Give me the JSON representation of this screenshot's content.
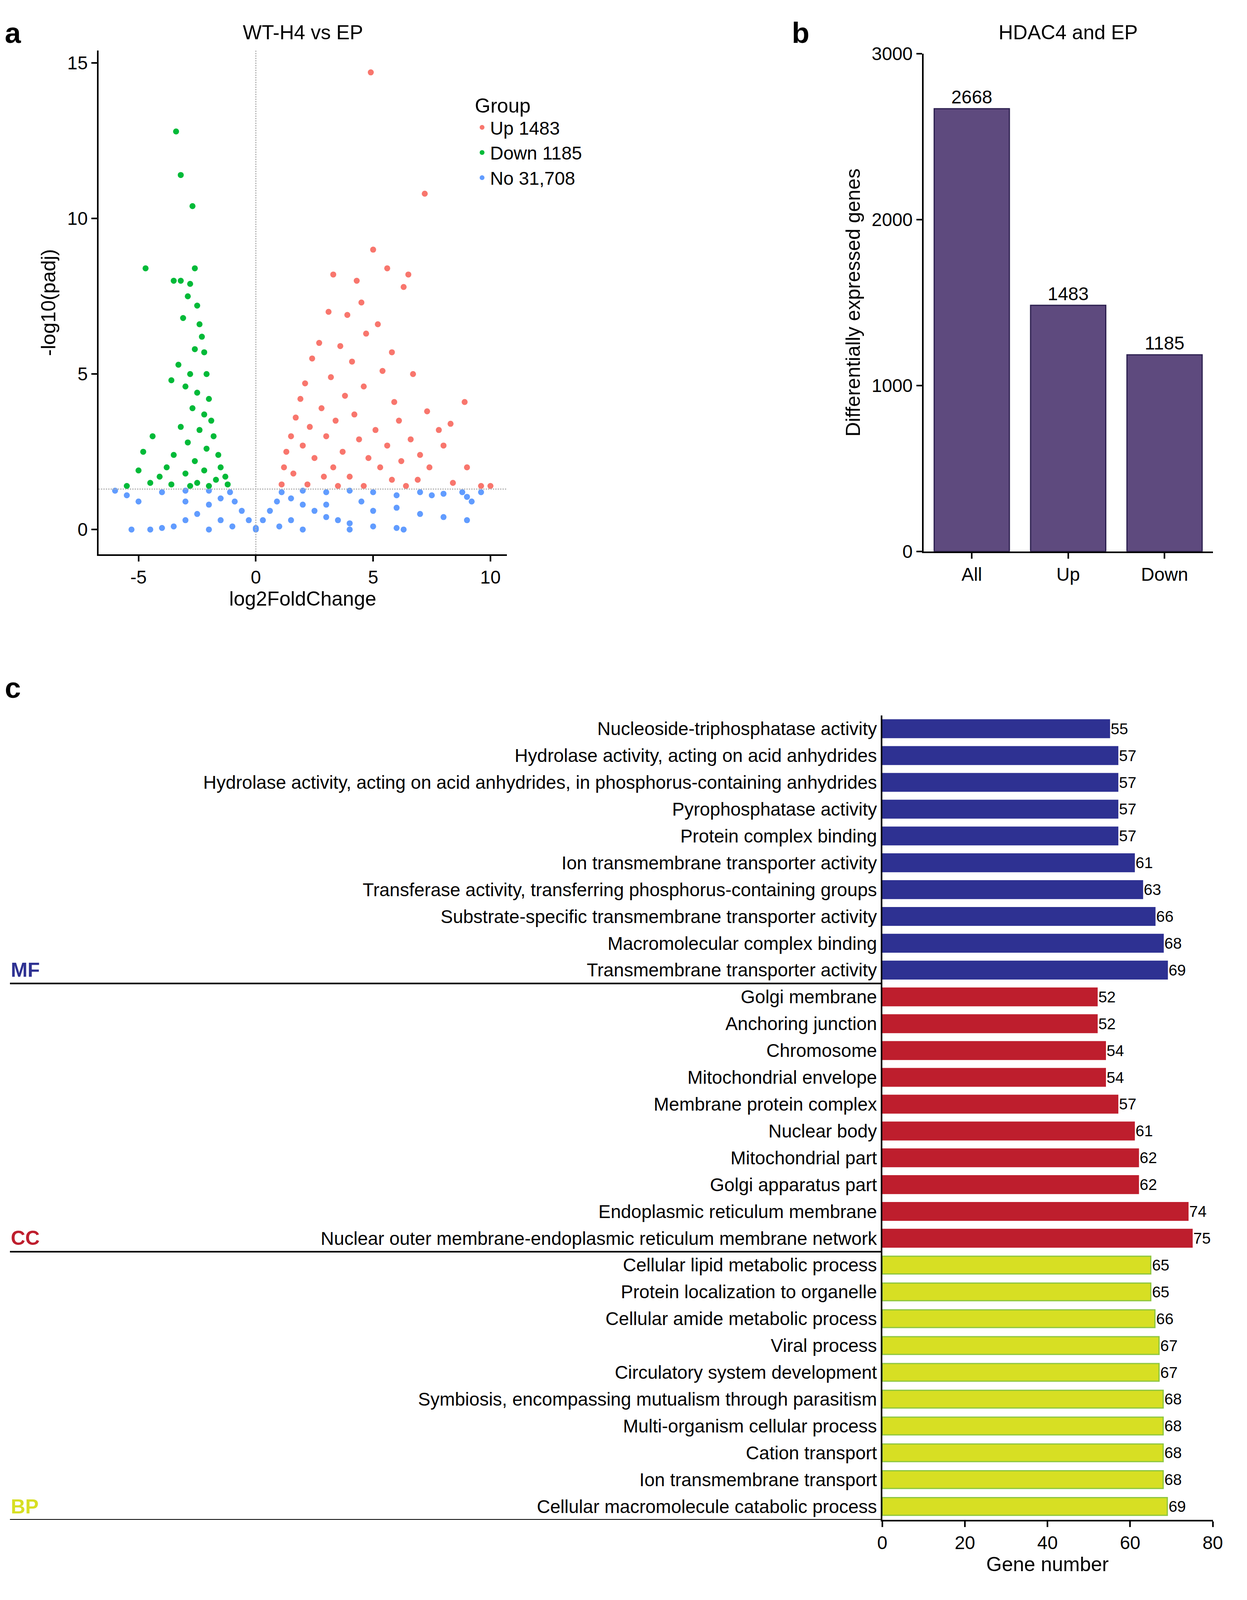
{
  "chart_data": [
    {
      "type": "scatter",
      "title": "WT-H4 vs EP",
      "annotations": [
        "a"
      ],
      "xlabel": "log2FoldChange",
      "ylabel": "-log10(padj)",
      "xlim": [
        -6.7,
        10.7
      ],
      "xticks": [
        -5,
        0,
        5,
        10
      ],
      "ylim": [
        -0.8,
        15.4
      ],
      "yticks": [
        0,
        5,
        10,
        15
      ],
      "threshold_x": 0,
      "threshold_y": 1.3,
      "legend": "upper right",
      "legend_title": "Group",
      "series": [
        {
          "name": "Up 1483",
          "color": "#f8766d",
          "x": [
            4.9,
            7.2,
            5.0,
            5.6,
            6.5,
            3.3,
            4.3,
            6.3,
            4.5,
            3.1,
            3.9,
            5.2,
            4.7,
            2.7,
            3.6,
            5.8,
            2.4,
            4.1,
            5.4,
            6.7,
            3.2,
            2.1,
            4.6,
            3.8,
            1.9,
            5.9,
            8.9,
            2.8,
            7.3,
            4.2,
            1.7,
            3.4,
            6.1,
            8.3,
            2.3,
            5.1,
            7.8,
            1.5,
            3.0,
            4.4,
            6.6,
            2.0,
            5.6,
            8.0,
            1.3,
            3.7,
            7.0,
            2.5,
            4.8,
            6.2,
            1.2,
            3.3,
            5.3,
            7.4,
            9.0,
            1.6,
            2.9,
            4.0,
            5.8,
            6.9,
            1.1,
            2.2,
            3.5,
            4.6,
            6.4,
            8.4,
            10.0,
            9.6
          ],
          "values": [
            14.7,
            10.8,
            9.0,
            8.4,
            8.2,
            8.2,
            8.0,
            7.8,
            7.3,
            7.0,
            6.9,
            6.6,
            6.3,
            6.0,
            5.9,
            5.7,
            5.5,
            5.4,
            5.1,
            5.0,
            4.9,
            4.7,
            4.6,
            4.3,
            4.2,
            4.1,
            4.1,
            3.9,
            3.8,
            3.7,
            3.6,
            3.5,
            3.5,
            3.4,
            3.3,
            3.2,
            3.2,
            3.0,
            3.0,
            2.9,
            2.9,
            2.7,
            2.7,
            2.7,
            2.5,
            2.5,
            2.4,
            2.3,
            2.3,
            2.2,
            2.0,
            2.0,
            2.0,
            2.0,
            2.0,
            1.8,
            1.7,
            1.7,
            1.6,
            1.6,
            1.45,
            1.45,
            1.4,
            1.4,
            1.4,
            1.5,
            1.4,
            1.4
          ]
        },
        {
          "name": "Down 1185",
          "color": "#00ba38",
          "x": [
            -3.4,
            -3.2,
            -2.7,
            -4.7,
            -3.5,
            -3.2,
            -2.8,
            -2.6,
            -2.9,
            -2.5,
            -3.1,
            -2.4,
            -2.3,
            -2.2,
            -2.6,
            -3.3,
            -2.8,
            -2.1,
            -3.0,
            -2.5,
            -2.0,
            -3.6,
            -2.7,
            -2.2,
            -1.9,
            -3.2,
            -2.4,
            -1.8,
            -4.4,
            -2.9,
            -2.1,
            -1.6,
            -3.5,
            -4.8,
            -2.6,
            -1.5,
            -3.8,
            -2.2,
            -1.3,
            -3.0,
            -4.1,
            -5.0,
            -1.2,
            -2.5,
            -3.6,
            -5.5,
            -2.0,
            -1.7,
            -4.5,
            -2.8
          ],
          "values": [
            12.8,
            11.4,
            10.4,
            8.4,
            8.0,
            8.0,
            7.9,
            8.4,
            7.5,
            7.2,
            6.8,
            6.6,
            6.2,
            5.7,
            5.8,
            5.3,
            5.0,
            5.0,
            4.6,
            4.4,
            4.2,
            4.8,
            3.9,
            3.7,
            3.5,
            3.3,
            3.2,
            3.0,
            3.0,
            2.8,
            2.6,
            2.4,
            2.4,
            2.5,
            2.2,
            2.0,
            2.0,
            1.9,
            1.7,
            1.8,
            1.7,
            1.9,
            1.45,
            1.5,
            1.45,
            1.4,
            1.4,
            1.6,
            1.5,
            1.4
          ]
        },
        {
          "name": "No 31,708",
          "color": "#619cff",
          "x": [
            0,
            -0.3,
            0.3,
            -0.6,
            0.6,
            -0.9,
            0.9,
            -1.1,
            1.1,
            -1.5,
            1.5,
            -2.0,
            2.0,
            -2.5,
            2.5,
            -3.0,
            3.0,
            -3.5,
            3.5,
            -4.0,
            4.0,
            5.0,
            6.0,
            6.3,
            -5.3,
            -4.5,
            -2.0,
            0,
            2.0,
            4.0,
            -5.5,
            -5.0,
            -4.0,
            -3.0,
            -2.0,
            2.0,
            3.0,
            4.0,
            5.0,
            6.0,
            7.0,
            7.5,
            8.0,
            8.8,
            9.0,
            9.2,
            9.6,
            7.0,
            8.0,
            9.0,
            5.0,
            6.0,
            1.0,
            -1.0,
            -6.0,
            3.0,
            -3.0,
            4.5,
            -1.5,
            1.5
          ],
          "values": [
            0.05,
            0.3,
            0.3,
            0.6,
            0.6,
            0.9,
            0.9,
            1.2,
            1.2,
            1.0,
            1.0,
            0.8,
            0.8,
            0.5,
            0.6,
            0.3,
            0.4,
            0.1,
            0.3,
            0.05,
            0.2,
            0.1,
            0.05,
            0.0,
            0.0,
            0.0,
            0.0,
            0.0,
            0.0,
            0.0,
            1.1,
            0.9,
            1.2,
            1.25,
            1.25,
            1.25,
            1.2,
            1.25,
            1.2,
            1.1,
            1.2,
            1.1,
            1.15,
            1.2,
            1.05,
            0.9,
            1.2,
            0.5,
            0.4,
            0.3,
            0.6,
            0.7,
            0.1,
            0.1,
            1.25,
            0.8,
            0.9,
            0.9,
            0.3,
            0.3
          ]
        }
      ]
    },
    {
      "type": "bar",
      "title": "HDAC4 and EP",
      "annotations": [
        "b"
      ],
      "ylabel": "Differentially expressed genes",
      "categories": [
        "All",
        "Up",
        "Down"
      ],
      "values": [
        2668,
        1483,
        1185
      ],
      "color": "#5e4a7e",
      "ylim": [
        0,
        3000
      ],
      "yticks": [
        0,
        1000,
        2000,
        3000
      ],
      "data_labels": true
    },
    {
      "type": "bar",
      "orientation": "horizontal",
      "annotations": [
        "c"
      ],
      "xlabel": "Gene number",
      "xlim": [
        0,
        80
      ],
      "xticks": [
        0,
        20,
        40,
        60,
        80
      ],
      "data_labels": true,
      "series": [
        {
          "name": "MF",
          "color": "#2e3192",
          "categories": [
            "Nucleoside-triphosphatase activity",
            "Hydrolase activity, acting on acid anhydrides",
            "Hydrolase activity, acting on acid anhydrides, in phosphorus-containing anhydrides",
            "Pyrophosphatase activity",
            "Protein complex binding",
            "Ion transmembrane transporter activity",
            "Transferase activity, transferring phosphorus-containing groups",
            "Substrate-specific transmembrane transporter activity",
            "Macromolecular complex binding",
            "Transmembrane transporter activity"
          ],
          "values": [
            55,
            57,
            57,
            57,
            57,
            61,
            63,
            66,
            68,
            69
          ]
        },
        {
          "name": "CC",
          "color": "#be1e2d",
          "categories": [
            "Golgi membrane",
            "Anchoring junction",
            "Chromosome",
            "Mitochondrial envelope",
            "Membrane protein complex",
            "Nuclear body",
            "Mitochondrial part",
            "Golgi apparatus part",
            "Endoplasmic reticulum membrane",
            "Nuclear outer membrane-endoplasmic reticulum membrane network"
          ],
          "values": [
            52,
            52,
            54,
            54,
            57,
            61,
            62,
            62,
            74,
            75
          ]
        },
        {
          "name": "BP",
          "color": "#d7df23",
          "categories": [
            "Cellular lipid metabolic process",
            "Protein localization to organelle",
            "Cellular amide metabolic process",
            "Viral process",
            "Circulatory system development",
            "Symbiosis, encompassing mutualism through parasitism",
            "Multi-organism cellular process",
            "Cation transport",
            "Ion transmembrane transport",
            "Cellular macromolecule catabolic process"
          ],
          "values": [
            65,
            65,
            66,
            67,
            67,
            68,
            68,
            68,
            68,
            69
          ]
        }
      ]
    }
  ]
}
